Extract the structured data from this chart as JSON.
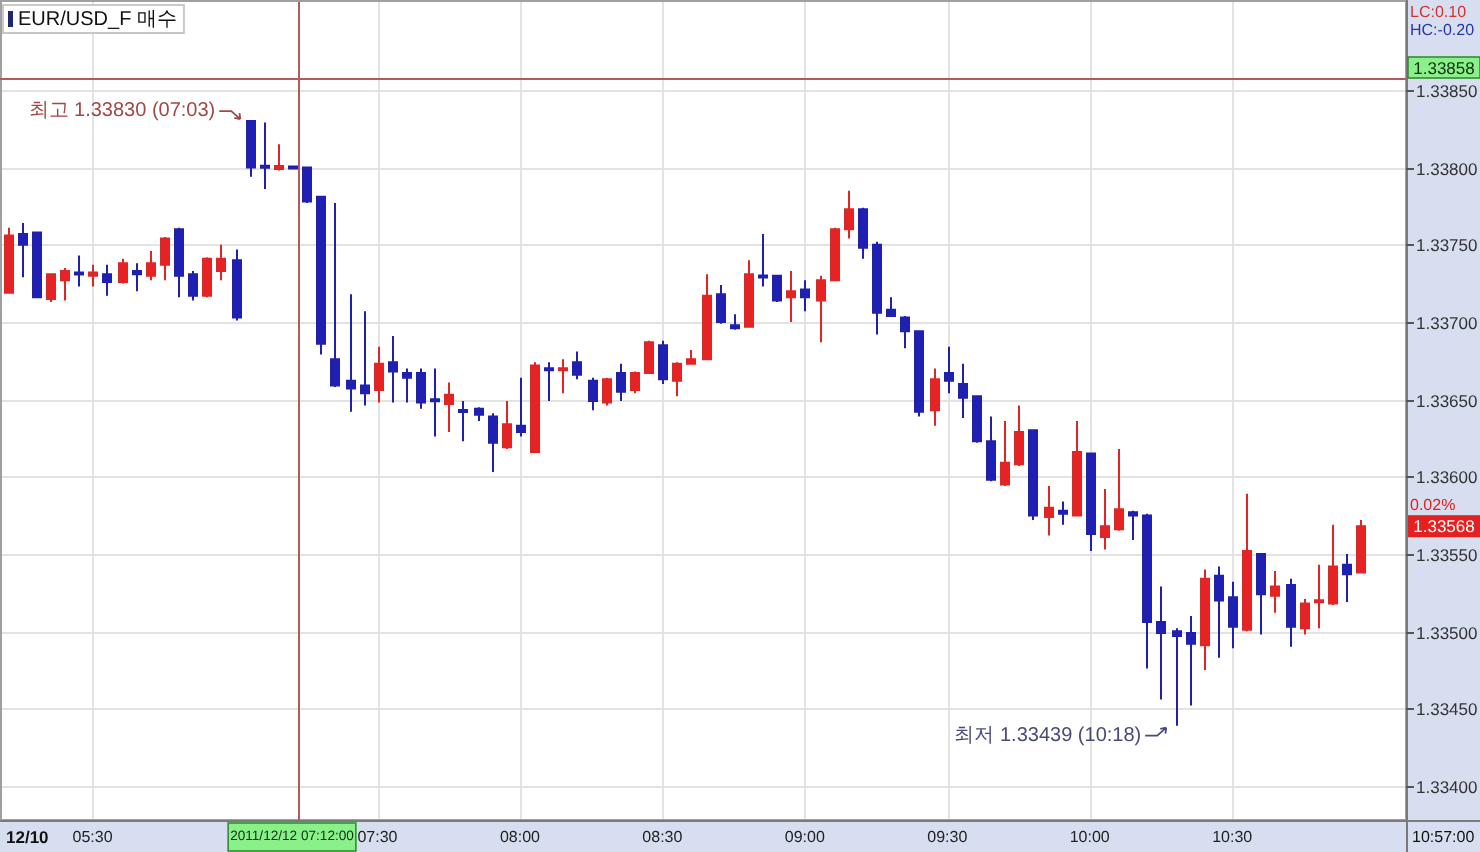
{
  "chart_data": {
    "type": "candlestick",
    "title": "EUR/USD_F 매수",
    "categories": [
      null,
      null,
      null,
      null,
      null,
      null,
      "05:30",
      null,
      null,
      null,
      null,
      null,
      null,
      null,
      null,
      null,
      null,
      null,
      null,
      null,
      "2011/12/12 07:12:00",
      null,
      null,
      null,
      null,
      null,
      "07:30",
      null,
      null,
      null,
      null,
      null,
      null,
      null,
      null,
      null,
      "08:00",
      null,
      null,
      null,
      null,
      null,
      null,
      null,
      null,
      null,
      "08:30",
      null,
      null,
      null,
      null,
      null,
      null,
      null,
      null,
      null,
      "09:00",
      null,
      null,
      null,
      null,
      null,
      null,
      null,
      null,
      null,
      "09:30",
      null,
      null,
      null,
      null,
      null,
      null,
      null,
      null,
      null,
      "10:00",
      null,
      null,
      null,
      null,
      null,
      null,
      null,
      null,
      null,
      "10:30",
      null,
      null,
      null,
      null,
      null,
      null,
      null,
      null,
      null
    ],
    "ohlc": [
      [
        1.33719,
        1.33761,
        1.33719,
        1.33756
      ],
      [
        1.33757,
        1.33764,
        1.33729,
        1.3375
      ],
      [
        1.33758,
        1.33758,
        1.33716,
        1.33716
      ],
      [
        1.33715,
        1.33731,
        1.33713,
        1.33731
      ],
      [
        1.33727,
        1.33735,
        1.33714,
        1.33733
      ],
      [
        1.33732,
        1.33743,
        1.33723,
        1.33731
      ],
      [
        1.3373,
        1.33737,
        1.33723,
        1.33732
      ],
      [
        1.33731,
        1.33737,
        1.33717,
        1.33726
      ],
      [
        1.33726,
        1.33741,
        1.33725,
        1.33738
      ],
      [
        1.33733,
        1.33738,
        1.3372,
        1.33731
      ],
      [
        1.3373,
        1.33746,
        1.33727,
        1.33738
      ],
      [
        1.33737,
        1.33755,
        1.33727,
        1.33754
      ],
      [
        1.3376,
        1.33761,
        1.33716,
        1.3373
      ],
      [
        1.33731,
        1.33733,
        1.33714,
        1.33717
      ],
      [
        1.33717,
        1.33742,
        1.33716,
        1.33741
      ],
      [
        1.33733,
        1.3375,
        1.33727,
        1.33741
      ],
      [
        1.3374,
        1.33747,
        1.33701,
        1.33703
      ],
      [
        1.3383,
        1.3383,
        1.33794,
        1.338
      ],
      [
        1.33801,
        1.33829,
        1.33786,
        1.338
      ],
      [
        1.33799,
        1.33815,
        1.33798,
        1.33801
      ],
      [
        1.338,
        1.33801,
        1.33799,
        1.338
      ],
      [
        1.338,
        1.338,
        1.33777,
        1.33778
      ],
      [
        1.33781,
        1.33781,
        1.33679,
        1.33686
      ],
      [
        1.33676,
        1.33777,
        1.33658,
        1.33659
      ],
      [
        1.33662,
        1.33718,
        1.33642,
        1.33657
      ],
      [
        1.33659,
        1.33707,
        1.33646,
        1.33654
      ],
      [
        1.33656,
        1.33684,
        1.33648,
        1.33673
      ],
      [
        1.33674,
        1.33691,
        1.33648,
        1.33668
      ],
      [
        1.33667,
        1.3367,
        1.33648,
        1.33664
      ],
      [
        1.33667,
        1.3367,
        1.33644,
        1.33648
      ],
      [
        1.3365,
        1.3367,
        1.33626,
        1.33649
      ],
      [
        1.33647,
        1.33661,
        1.33629,
        1.33653
      ],
      [
        1.33643,
        1.33649,
        1.33623,
        1.33642
      ],
      [
        1.33644,
        1.33645,
        1.33636,
        1.3364
      ],
      [
        1.33639,
        1.33641,
        1.33603,
        1.33622
      ],
      [
        1.33619,
        1.33649,
        1.33618,
        1.33634
      ],
      [
        1.33633,
        1.33664,
        1.33626,
        1.33629
      ],
      [
        1.33616,
        1.33674,
        1.33616,
        1.33672
      ],
      [
        1.3367,
        1.33674,
        1.33649,
        1.33669
      ],
      [
        1.33669,
        1.33676,
        1.33654,
        1.3367
      ],
      [
        1.33674,
        1.33681,
        1.33663,
        1.33666
      ],
      [
        1.33662,
        1.33664,
        1.33643,
        1.33649
      ],
      [
        1.33648,
        1.33664,
        1.33646,
        1.33663
      ],
      [
        1.33667,
        1.33673,
        1.33649,
        1.33655
      ],
      [
        1.33656,
        1.33668,
        1.33654,
        1.33667
      ],
      [
        1.33667,
        1.33688,
        1.33667,
        1.33687
      ],
      [
        1.33685,
        1.33688,
        1.3366,
        1.33663
      ],
      [
        1.33662,
        1.33674,
        1.33652,
        1.33673
      ],
      [
        1.33673,
        1.33682,
        1.33673,
        1.33676
      ],
      [
        1.33676,
        1.33731,
        1.33676,
        1.33717
      ],
      [
        1.33718,
        1.33724,
        1.33699,
        1.337
      ],
      [
        1.33698,
        1.33705,
        1.33695,
        1.33696
      ],
      [
        1.33697,
        1.3374,
        1.33697,
        1.33731
      ],
      [
        1.3373,
        1.33757,
        1.33723,
        1.33729
      ],
      [
        1.3373,
        1.3373,
        1.33713,
        1.33714
      ],
      [
        1.33716,
        1.33733,
        1.337,
        1.3372
      ],
      [
        1.33721,
        1.33727,
        1.33707,
        1.33716
      ],
      [
        1.33714,
        1.3373,
        1.33687,
        1.33727
      ],
      [
        1.33727,
        1.33761,
        1.33727,
        1.3376
      ],
      [
        1.3376,
        1.33785,
        1.33754,
        1.33773
      ],
      [
        1.33773,
        1.33774,
        1.33741,
        1.33748
      ],
      [
        1.3375,
        1.33752,
        1.33692,
        1.33706
      ],
      [
        1.33708,
        1.33716,
        1.33704,
        1.33704
      ],
      [
        1.33703,
        1.33704,
        1.33683,
        1.33694
      ],
      [
        1.33694,
        1.33694,
        1.33639,
        1.33642
      ],
      [
        1.33643,
        1.3367,
        1.33633,
        1.33663
      ],
      [
        1.33667,
        1.33684,
        1.33654,
        1.33662
      ],
      [
        1.3366,
        1.33673,
        1.33638,
        1.33651
      ],
      [
        1.33652,
        1.33652,
        1.33622,
        1.33623
      ],
      [
        1.33623,
        1.33639,
        1.33597,
        1.33598
      ],
      [
        1.33595,
        1.33636,
        1.33594,
        1.33609
      ],
      [
        1.33608,
        1.33646,
        1.33607,
        1.33629
      ],
      [
        1.3363,
        1.3363,
        1.33572,
        1.33575
      ],
      [
        1.33574,
        1.33594,
        1.33562,
        1.3358
      ],
      [
        1.33578,
        1.33584,
        1.33569,
        1.33576
      ],
      [
        1.33575,
        1.33636,
        1.33575,
        1.33616
      ],
      [
        1.33615,
        1.33615,
        1.33552,
        1.33563
      ],
      [
        1.33561,
        1.33592,
        1.33553,
        1.33568
      ],
      [
        1.33566,
        1.33618,
        1.33565,
        1.33579
      ],
      [
        1.33577,
        1.33578,
        1.33559,
        1.33575
      ],
      [
        1.33575,
        1.33576,
        1.33476,
        1.33506
      ],
      [
        1.33506,
        1.33529,
        1.33456,
        1.33499
      ],
      [
        1.335,
        1.33502,
        1.33439,
        1.33497
      ],
      [
        1.33499,
        1.3351,
        1.33452,
        1.33492
      ],
      [
        1.33491,
        1.3354,
        1.33475,
        1.33534
      ],
      [
        1.33536,
        1.33542,
        1.33483,
        1.3352
      ],
      [
        1.33522,
        1.33532,
        1.33489,
        1.33503
      ],
      [
        1.33501,
        1.33589,
        1.335,
        1.33552
      ],
      [
        1.3355,
        1.3355,
        1.33498,
        1.33524
      ],
      [
        1.33523,
        1.33539,
        1.33512,
        1.33529
      ],
      [
        1.3353,
        1.33534,
        1.3349,
        1.33503
      ],
      [
        1.33502,
        1.33521,
        1.33498,
        1.33518
      ],
      [
        1.33519,
        1.33543,
        1.33502,
        1.3352
      ],
      [
        1.33518,
        1.33569,
        1.33517,
        1.33542
      ],
      [
        1.33543,
        1.3355,
        1.33519,
        1.33537
      ],
      [
        1.33538,
        1.33572,
        1.33538,
        1.33568
      ]
    ],
    "colors": [
      "#e22424",
      "#2020b0",
      "#2020b0",
      "#e22424",
      "#e22424",
      "#2020b0",
      "#e22424",
      "#2020b0",
      "#e22424",
      "#2020b0",
      "#e22424",
      "#e22424",
      "#2020b0",
      "#2020b0",
      "#e22424",
      "#e22424",
      "#2020b0",
      "#2020b0",
      "#2020b0",
      "#e22424",
      "#2020b0",
      "#2020b0",
      "#2020b0",
      "#2020b0",
      "#2020b0",
      "#2020b0",
      "#e22424",
      "#2020b0",
      "#2020b0",
      "#2020b0",
      "#2020b0",
      "#e22424",
      "#2020b0",
      "#2020b0",
      "#2020b0",
      "#e22424",
      "#2020b0",
      "#e22424",
      "#2020b0",
      "#e22424",
      "#2020b0",
      "#2020b0",
      "#e22424",
      "#2020b0",
      "#e22424",
      "#e22424",
      "#2020b0",
      "#e22424",
      "#e22424",
      "#e22424",
      "#2020b0",
      "#2020b0",
      "#e22424",
      "#2020b0",
      "#2020b0",
      "#e22424",
      "#2020b0",
      "#e22424",
      "#e22424",
      "#e22424",
      "#2020b0",
      "#2020b0",
      "#2020b0",
      "#2020b0",
      "#2020b0",
      "#e22424",
      "#2020b0",
      "#2020b0",
      "#2020b0",
      "#2020b0",
      "#e22424",
      "#e22424",
      "#2020b0",
      "#e22424",
      "#2020b0",
      "#e22424",
      "#2020b0",
      "#e22424",
      "#e22424",
      "#2020b0",
      "#2020b0",
      "#2020b0",
      "#2020b0",
      "#2020b0",
      "#e22424",
      "#2020b0",
      "#2020b0",
      "#e22424",
      "#2020b0",
      "#e22424",
      "#2020b0",
      "#e22424",
      "#e22424",
      "#e22424",
      "#2020b0",
      "#e22424"
    ],
    "ylim": [
      1.33378,
      1.33907
    ],
    "yticks": [
      {
        "value": 1.334,
        "label": "1.33400"
      },
      {
        "value": 1.3345,
        "label": "1.33450"
      },
      {
        "value": 1.335,
        "label": "1.33500"
      },
      {
        "value": 1.3355,
        "label": "1.33550"
      },
      {
        "value": 1.336,
        "label": "1.33600"
      },
      {
        "value": 1.3365,
        "label": "1.33650"
      },
      {
        "value": 1.337,
        "label": "1.33700"
      },
      {
        "value": 1.3375,
        "label": "1.33750"
      },
      {
        "value": 1.338,
        "label": "1.33800"
      },
      {
        "value": 1.3385,
        "label": "1.33850"
      }
    ],
    "grid": true,
    "ref_lines": [
      {
        "axis": "y",
        "value": 1.33858,
        "label": "1.33858",
        "color": "#b45a5a"
      },
      {
        "axis": "x",
        "value": "2011/12/12 07:12:00",
        "color": "#b45a5a"
      }
    ],
    "annotations": [
      "최고 1.33830 (07:03)",
      "최저 1.33439 (10:18)",
      "1.33568",
      "LC:0.10",
      "HC:-0.20",
      "0.02%",
      "10:57:00",
      "12/10"
    ]
  }
}
